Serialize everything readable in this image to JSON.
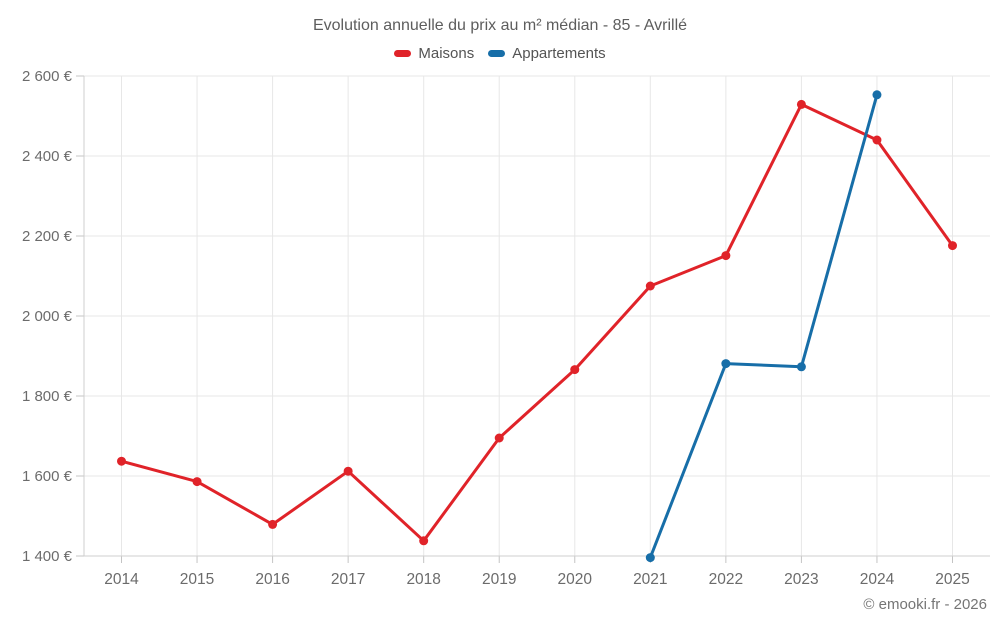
{
  "page": {
    "footer": "© emooki.fr - 2026"
  },
  "colors": {
    "maisons": "#e02329",
    "appartements": "#176ea8",
    "grid": "#e7e7e7",
    "axis": "#cfcfcf",
    "tick": "#c4c4c4",
    "title_text": "#5d5d5d",
    "legend_text": "#545454",
    "axis_label_text": "#6b6b6b"
  },
  "chart_data": {
    "type": "line",
    "title": "Evolution annuelle du prix au m² médian - 85 - Avrillé",
    "xlabel": "",
    "ylabel": "",
    "grid": true,
    "legend_position": "top",
    "categories": [
      "2014",
      "2015",
      "2016",
      "2017",
      "2018",
      "2019",
      "2020",
      "2021",
      "2022",
      "2023",
      "2024",
      "2025"
    ],
    "series": [
      {
        "name": "Maisons",
        "color": "#e02329",
        "values": [
          1637,
          1586,
          1479,
          1612,
          1438,
          1695,
          1866,
          2075,
          2151,
          2529,
          2440,
          2176
        ]
      },
      {
        "name": "Appartements",
        "color": "#176ea8",
        "values": [
          null,
          null,
          null,
          null,
          null,
          null,
          null,
          1396,
          1881,
          1873,
          2553,
          null
        ]
      }
    ],
    "ylim": [
      1400,
      2600
    ],
    "y_ticks": {
      "values": [
        1400,
        1600,
        1800,
        2000,
        2200,
        2400,
        2600
      ],
      "labels": [
        "1 400 €",
        "1 600 €",
        "1 800 €",
        "2 000 €",
        "2 200 €",
        "2 400 €",
        "2 600 €"
      ]
    }
  }
}
